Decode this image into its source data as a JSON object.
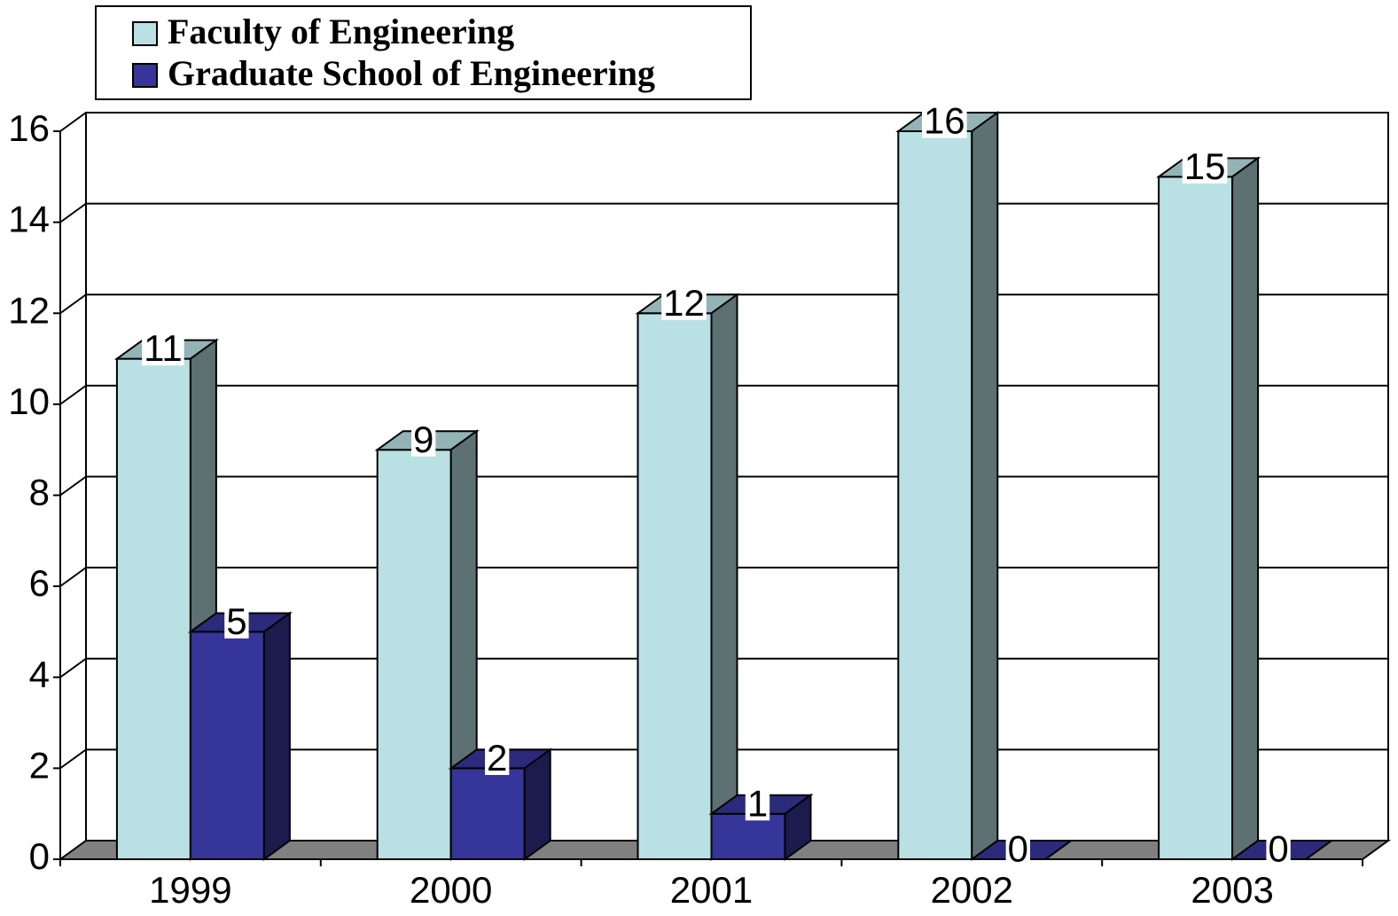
{
  "chart_data": {
    "type": "bar3d",
    "categories": [
      "1999",
      "2000",
      "2001",
      "2002",
      "2003"
    ],
    "series": [
      {
        "name": "Faculty of Engineering",
        "color": "#b9e0e3",
        "values": [
          11,
          9,
          12,
          16,
          15
        ]
      },
      {
        "name": "Graduate School of Engineering",
        "color": "#36359a",
        "values": [
          5,
          2,
          1,
          0,
          0
        ]
      }
    ],
    "ylim": [
      0,
      16
    ],
    "yticks": [
      0,
      2,
      4,
      6,
      8,
      10,
      12,
      14,
      16
    ],
    "grid": true,
    "legend": "top-left"
  }
}
